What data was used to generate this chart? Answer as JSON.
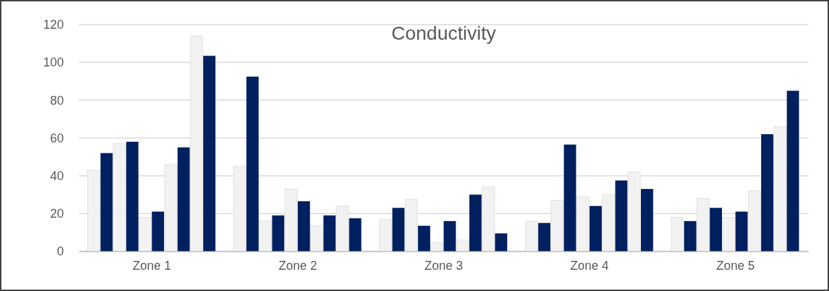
{
  "chart_data": {
    "type": "bar",
    "title": "Conductivity",
    "categories": [
      "Zone 1",
      "Zone 2",
      "Zone 3",
      "Zone 4",
      "Zone 5"
    ],
    "series": [
      {
        "color": "#f2f2f2",
        "values": [
          43,
          45,
          17,
          16,
          18
        ]
      },
      {
        "color": "#002060",
        "values": [
          52,
          92.5,
          23,
          15,
          16
        ]
      },
      {
        "color": "#f2f2f2",
        "values": [
          57,
          16,
          27.5,
          27,
          28
        ]
      },
      {
        "color": "#002060",
        "values": [
          58,
          19,
          13.5,
          56.5,
          23
        ]
      },
      {
        "color": "#f2f2f2",
        "values": [
          18,
          33,
          4.5,
          29,
          18
        ]
      },
      {
        "color": "#002060",
        "values": [
          21,
          26.5,
          16,
          24,
          21
        ]
      },
      {
        "color": "#f2f2f2",
        "values": [
          46,
          13.5,
          6,
          30,
          32
        ]
      },
      {
        "color": "#002060",
        "values": [
          55,
          19,
          30,
          37.5,
          62
        ]
      },
      {
        "color": "#f2f2f2",
        "values": [
          114,
          24,
          34,
          42,
          66
        ]
      },
      {
        "color": "#002060",
        "values": [
          103.5,
          17.5,
          9.5,
          33,
          85
        ]
      }
    ],
    "ylim": [
      0,
      120
    ],
    "yticks": [
      0,
      20,
      40,
      60,
      80,
      100,
      120
    ],
    "grid": "y"
  }
}
